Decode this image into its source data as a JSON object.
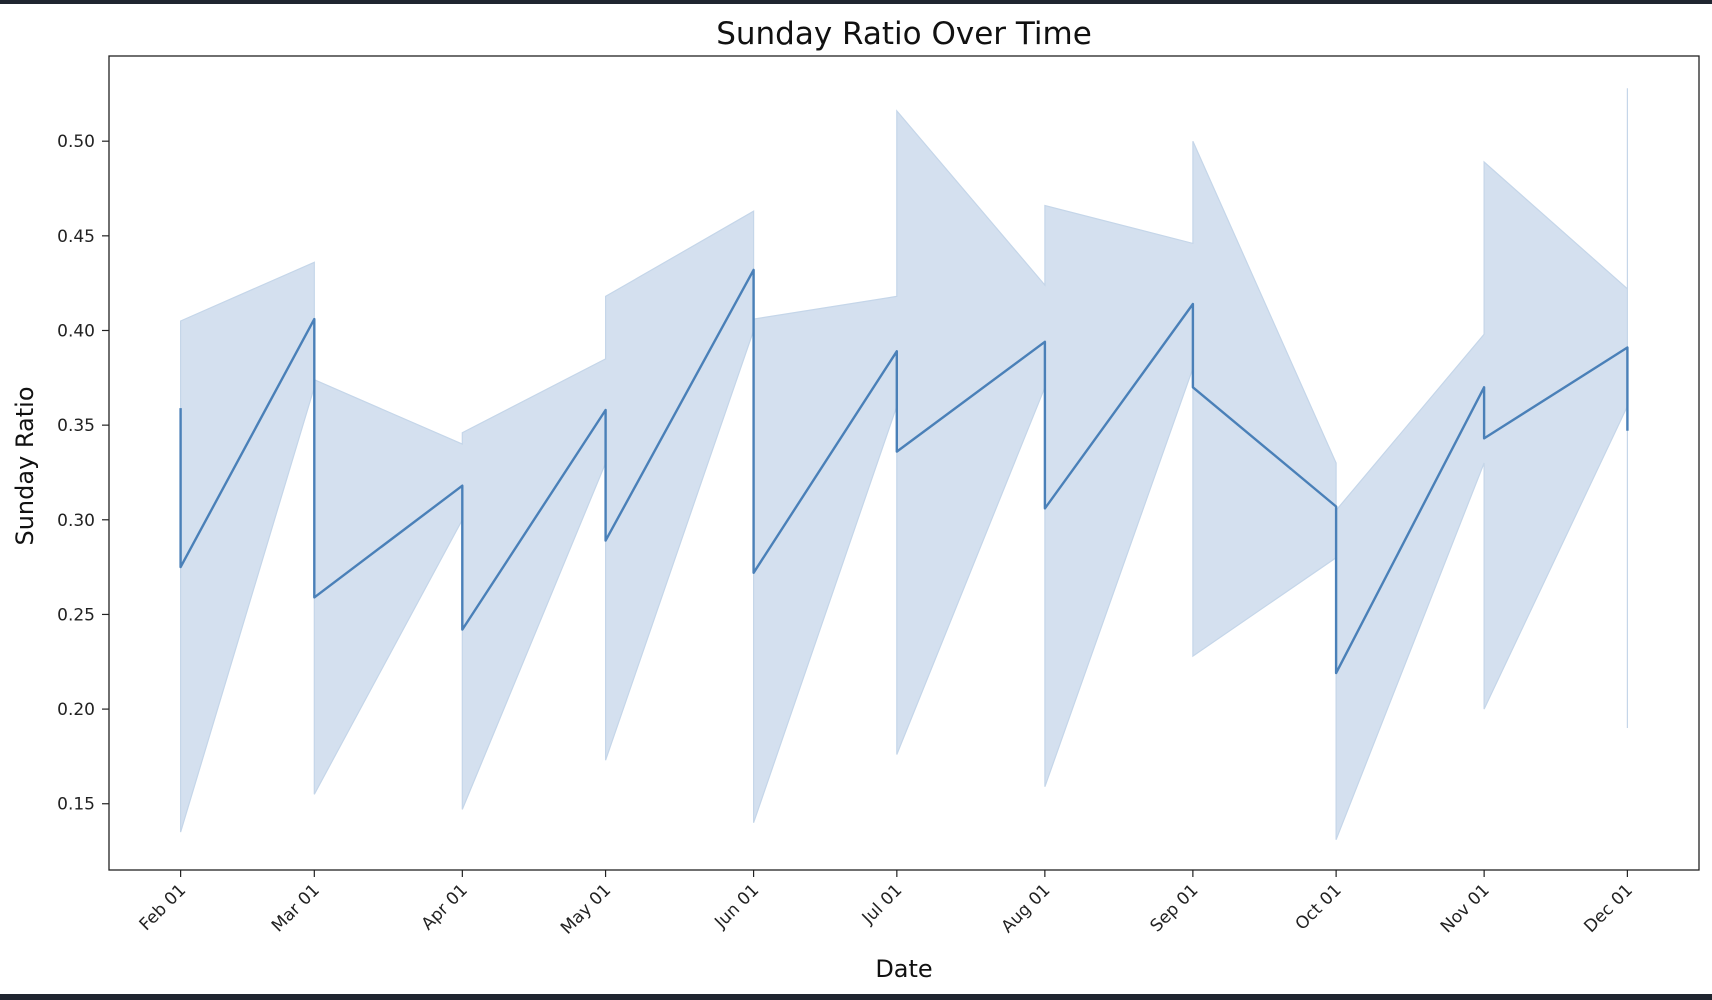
{
  "chart_data": {
    "type": "line",
    "title": "Sunday Ratio Over Time",
    "xlabel": "Date",
    "ylabel": "Sunday Ratio",
    "x_ticks": [
      "Feb 01",
      "Mar 01",
      "Apr 01",
      "May 01",
      "Jun 01",
      "Jul 01",
      "Aug 01",
      "Sep 01",
      "Oct 01",
      "Nov 01",
      "Dec 01"
    ],
    "y_ticks": [
      "0.15",
      "0.20",
      "0.25",
      "0.30",
      "0.35",
      "0.40",
      "0.45",
      "0.50"
    ],
    "ylim": [
      0.115,
      0.545
    ],
    "xlim": [
      "2023-01-17",
      "2023-12-16"
    ],
    "grid": false,
    "legend": "none",
    "colors": {
      "line": "#4a80b8",
      "band": "#c5d6e9"
    },
    "series": [
      {
        "x": [
          "2023-02-01",
          "2023-02-01",
          "2023-03-01",
          "2023-03-01",
          "2023-04-01",
          "2023-04-01",
          "2023-05-01",
          "2023-05-01",
          "2023-06-01",
          "2023-06-01",
          "2023-07-01",
          "2023-07-01",
          "2023-08-01",
          "2023-08-01",
          "2023-09-01",
          "2023-09-01",
          "2023-10-01",
          "2023-10-01",
          "2023-11-01",
          "2023-11-01",
          "2023-12-01",
          "2023-12-01"
        ],
        "y": [
          0.359,
          0.275,
          0.406,
          0.259,
          0.318,
          0.242,
          0.358,
          0.289,
          0.432,
          0.272,
          0.389,
          0.336,
          0.394,
          0.306,
          0.414,
          0.37,
          0.307,
          0.219,
          0.37,
          0.343,
          0.391,
          0.347
        ],
        "lower": [
          0.405,
          0.135,
          0.37,
          0.155,
          0.3,
          0.147,
          0.33,
          0.173,
          0.4,
          0.14,
          0.36,
          0.176,
          0.37,
          0.159,
          0.38,
          0.228,
          0.28,
          0.131,
          0.33,
          0.2,
          0.36,
          0.19
        ],
        "upper": [
          0.405,
          0.405,
          0.436,
          0.374,
          0.34,
          0.346,
          0.385,
          0.418,
          0.463,
          0.406,
          0.418,
          0.516,
          0.424,
          0.466,
          0.446,
          0.5,
          0.33,
          0.305,
          0.398,
          0.489,
          0.422,
          0.528
        ]
      }
    ]
  }
}
